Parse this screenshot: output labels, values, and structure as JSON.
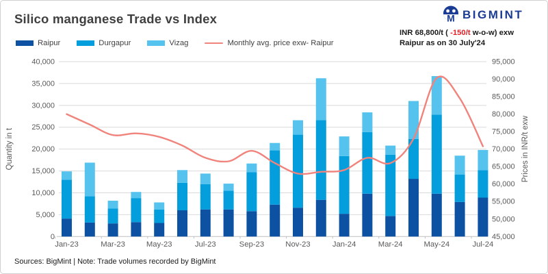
{
  "header": {
    "title": "Silico manganese Trade vs Index",
    "brand": "BIGMINT",
    "annotation": {
      "part1": "INR 68,800/t ( ",
      "highlight": "-150/t",
      "part2": " w-o-w) exw",
      "line2": "Raipur as on 30 July'24"
    }
  },
  "footer": "Sources: BigMint | Note: Trade volumes recorded by BigMint",
  "colors": {
    "raipur": "#0d52a2",
    "durgapur": "#049edd",
    "vizag": "#56c3ef",
    "price_line": "#f0837c",
    "brand_navy": "#1b3c94",
    "negative_red": "#e31e25",
    "grid": "#d9d9d9",
    "axis_line": "#bfbfbf",
    "axis_text": "#595959",
    "title_text": "#404040"
  },
  "chart_data": {
    "type": "bar",
    "subtype": "stacked-bars-with-line",
    "categories": [
      "Jan-23",
      "Feb-23",
      "Mar-23",
      "Apr-23",
      "May-23",
      "Jun-23",
      "Jul-23",
      "Aug-23",
      "Sep-23",
      "Oct-23",
      "Nov-23",
      "Dec-23",
      "Jan-24",
      "Feb-24",
      "Mar-24",
      "Apr-24",
      "May-24",
      "Jun-24",
      "Jul-24"
    ],
    "x_tick_labels": [
      "Jan-23",
      "Mar-23",
      "May-23",
      "Jul-23",
      "Sep-23",
      "Nov-23",
      "Jan-24",
      "Mar-24",
      "May-24",
      "Jul-24"
    ],
    "series": [
      {
        "name": "Raipur",
        "type": "bar",
        "color": "#0d52a2",
        "values": [
          4100,
          3200,
          3000,
          3300,
          3100,
          6000,
          6200,
          6200,
          5800,
          7300,
          6600,
          8400,
          5200,
          9800,
          4700,
          13200,
          9800,
          7900,
          8900
        ]
      },
      {
        "name": "Durgapur",
        "type": "bar",
        "color": "#049edd",
        "values": [
          8900,
          6000,
          3400,
          5500,
          3100,
          6300,
          5800,
          4300,
          8900,
          12400,
          16700,
          18200,
          13200,
          14100,
          14000,
          9100,
          18100,
          6300,
          6300
        ]
      },
      {
        "name": "Vizag",
        "type": "bar",
        "color": "#56c3ef",
        "values": [
          1900,
          7700,
          1800,
          1400,
          1600,
          2900,
          2400,
          1600,
          2000,
          1700,
          3300,
          9600,
          4500,
          4500,
          2100,
          8700,
          8800,
          4300,
          4600
        ]
      },
      {
        "name": "Monthly avg. price exw- Raipur",
        "type": "line",
        "axis": "right",
        "color": "#f0837c",
        "values": [
          80000,
          77000,
          74000,
          74500,
          73500,
          71000,
          67500,
          66500,
          69500,
          66000,
          63000,
          63500,
          64000,
          67500,
          66000,
          73000,
          90300,
          84500,
          70800
        ]
      }
    ],
    "stacked": true,
    "grid": true,
    "legend_position": "top",
    "left_axis": {
      "label": "Quantity in t",
      "min": 0,
      "max": 40000,
      "step": 5000
    },
    "right_axis": {
      "label": "Prices in INR/t exw",
      "min": 45000,
      "max": 95000,
      "step": 5000
    }
  }
}
